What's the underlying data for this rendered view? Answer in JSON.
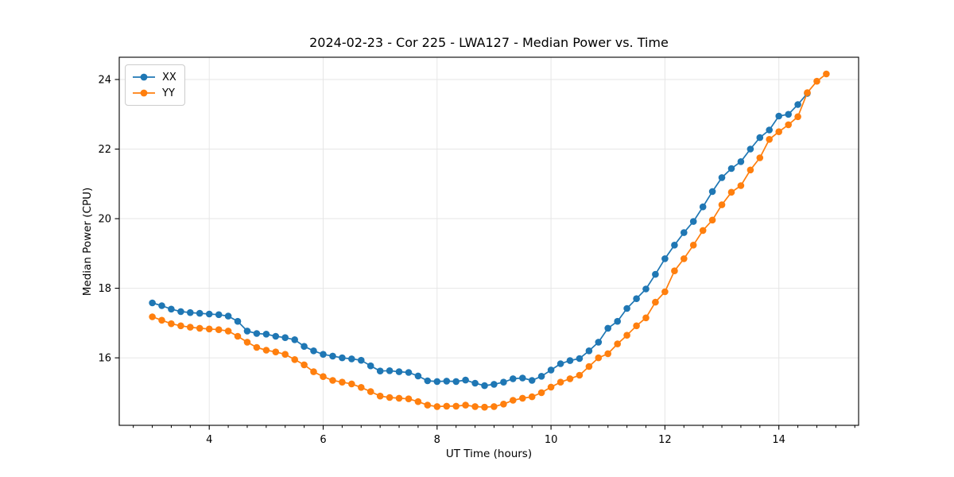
{
  "chart_data": {
    "type": "line",
    "title": "2024-02-23 - Cor 225 - LWA127 - Median Power vs. Time",
    "xlabel": "UT Time (hours)",
    "ylabel": "Median Power (CPU)",
    "xlim": [
      2.42,
      15.4
    ],
    "ylim": [
      14.06,
      24.64
    ],
    "xticks": [
      4,
      6,
      8,
      10,
      12,
      14
    ],
    "x_tick_labels": [
      "4",
      "6",
      "8",
      "10",
      "12",
      "14"
    ],
    "x_minor_step": 0.3333333,
    "yticks": [
      16,
      18,
      20,
      22,
      24
    ],
    "y_tick_labels": [
      "16",
      "18",
      "20",
      "22",
      "24"
    ],
    "grid": true,
    "grid_color": "#e6e6e6",
    "legend_position": "upper left",
    "series": [
      {
        "name": "XX",
        "color": "#1f77b4",
        "marker": "circle",
        "x": [
          3.0,
          3.167,
          3.333,
          3.5,
          3.667,
          3.833,
          4.0,
          4.167,
          4.333,
          4.5,
          4.667,
          4.833,
          5.0,
          5.167,
          5.333,
          5.5,
          5.667,
          5.833,
          6.0,
          6.167,
          6.333,
          6.5,
          6.667,
          6.833,
          7.0,
          7.167,
          7.333,
          7.5,
          7.667,
          7.833,
          8.0,
          8.167,
          8.333,
          8.5,
          8.667,
          8.833,
          9.0,
          9.167,
          9.333,
          9.5,
          9.667,
          9.833,
          10.0,
          10.167,
          10.333,
          10.5,
          10.667,
          10.833,
          11.0,
          11.167,
          11.333,
          11.5,
          11.667,
          11.833,
          12.0,
          12.167,
          12.333,
          12.5,
          12.667,
          12.833,
          13.0,
          13.167,
          13.333,
          13.5,
          13.667,
          13.833,
          14.0,
          14.167,
          14.333,
          14.5
        ],
        "y": [
          17.58,
          17.5,
          17.4,
          17.33,
          17.3,
          17.28,
          17.26,
          17.24,
          17.2,
          17.05,
          16.77,
          16.7,
          16.68,
          16.62,
          16.58,
          16.52,
          16.33,
          16.2,
          16.1,
          16.05,
          16.0,
          15.97,
          15.93,
          15.77,
          15.62,
          15.63,
          15.6,
          15.58,
          15.48,
          15.34,
          15.32,
          15.33,
          15.32,
          15.36,
          15.27,
          15.2,
          15.24,
          15.3,
          15.4,
          15.42,
          15.35,
          15.47,
          15.65,
          15.83,
          15.92,
          15.98,
          16.2,
          16.45,
          16.85,
          17.05,
          17.42,
          17.7,
          17.98,
          18.4,
          18.85,
          19.24,
          19.6,
          19.92,
          20.34,
          20.78,
          21.18,
          21.44,
          21.64,
          22.0,
          22.33,
          22.55,
          22.95,
          23.0,
          23.28,
          23.6
        ]
      },
      {
        "name": "YY",
        "color": "#ff7f0e",
        "marker": "circle",
        "x": [
          3.0,
          3.167,
          3.333,
          3.5,
          3.667,
          3.833,
          4.0,
          4.167,
          4.333,
          4.5,
          4.667,
          4.833,
          5.0,
          5.167,
          5.333,
          5.5,
          5.667,
          5.833,
          6.0,
          6.167,
          6.333,
          6.5,
          6.667,
          6.833,
          7.0,
          7.167,
          7.333,
          7.5,
          7.667,
          7.833,
          8.0,
          8.167,
          8.333,
          8.5,
          8.667,
          8.833,
          9.0,
          9.167,
          9.333,
          9.5,
          9.667,
          9.833,
          10.0,
          10.167,
          10.333,
          10.5,
          10.667,
          10.833,
          11.0,
          11.167,
          11.333,
          11.5,
          11.667,
          11.833,
          12.0,
          12.167,
          12.333,
          12.5,
          12.667,
          12.833,
          13.0,
          13.167,
          13.333,
          13.5,
          13.667,
          13.833,
          14.0,
          14.167,
          14.333,
          14.5,
          14.667,
          14.833
        ],
        "y": [
          17.18,
          17.08,
          16.98,
          16.92,
          16.88,
          16.85,
          16.83,
          16.81,
          16.77,
          16.62,
          16.45,
          16.3,
          16.22,
          16.17,
          16.1,
          15.95,
          15.8,
          15.6,
          15.46,
          15.35,
          15.3,
          15.25,
          15.15,
          15.03,
          14.9,
          14.86,
          14.84,
          14.82,
          14.74,
          14.64,
          14.6,
          14.61,
          14.61,
          14.64,
          14.6,
          14.58,
          14.6,
          14.67,
          14.78,
          14.84,
          14.88,
          15.0,
          15.16,
          15.3,
          15.4,
          15.5,
          15.75,
          16.0,
          16.12,
          16.4,
          16.65,
          16.92,
          17.15,
          17.6,
          17.9,
          18.5,
          18.85,
          19.24,
          19.66,
          19.96,
          20.4,
          20.76,
          20.95,
          21.4,
          21.75,
          22.28,
          22.5,
          22.7,
          22.93,
          23.62,
          23.95,
          24.16
        ]
      }
    ]
  }
}
